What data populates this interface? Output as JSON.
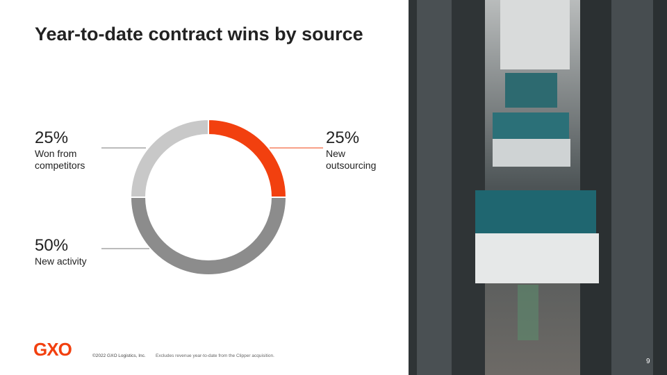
{
  "chart_data": {
    "type": "donut",
    "title": "Year-to-date contract wins by source",
    "categories": [
      "New outsourcing",
      "New activity",
      "Won from competitors"
    ],
    "values": [
      25,
      50,
      25
    ],
    "value_labels": [
      "25%",
      "50%",
      "25%"
    ],
    "colors": [
      "#f2400f",
      "#8c8c8c",
      "#c8c8c8"
    ]
  },
  "footer": {
    "logo": "GXO",
    "copyright": "©2022 GXO Logistics, Inc.",
    "note": "Excludes revenue year-to-date from the Clipper acquisition.",
    "page": "9"
  }
}
